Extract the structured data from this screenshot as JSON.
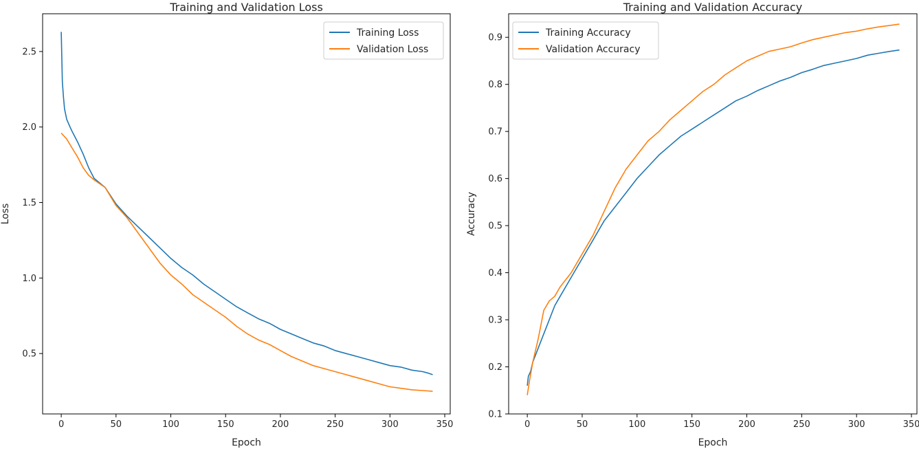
{
  "chart_data": [
    {
      "type": "line",
      "title": "Training and Validation Loss",
      "xlabel": "Epoch",
      "ylabel": "Loss",
      "xlim": [
        -17,
        355
      ],
      "ylim": [
        0.1,
        2.75
      ],
      "xticks": [
        0,
        50,
        100,
        150,
        200,
        250,
        300,
        350
      ],
      "yticks": [
        0.5,
        1.0,
        1.5,
        2.0,
        2.5
      ],
      "ytick_labels": [
        "0.5",
        "1.0",
        "1.5",
        "2.0",
        "2.5"
      ],
      "grid": false,
      "legend": "top-right",
      "series": [
        {
          "name": "Training Loss",
          "color": "#1f77b4",
          "x": [
            0,
            1,
            2,
            3,
            5,
            8,
            10,
            15,
            20,
            25,
            30,
            40,
            50,
            60,
            70,
            80,
            90,
            100,
            110,
            120,
            130,
            140,
            150,
            160,
            170,
            180,
            190,
            200,
            210,
            220,
            230,
            240,
            250,
            260,
            270,
            280,
            290,
            300,
            310,
            320,
            330,
            335,
            339
          ],
          "y": [
            2.63,
            2.3,
            2.2,
            2.12,
            2.05,
            2.0,
            1.97,
            1.9,
            1.82,
            1.73,
            1.66,
            1.6,
            1.49,
            1.41,
            1.34,
            1.27,
            1.2,
            1.13,
            1.07,
            1.02,
            0.96,
            0.91,
            0.86,
            0.81,
            0.77,
            0.73,
            0.7,
            0.66,
            0.63,
            0.6,
            0.57,
            0.55,
            0.52,
            0.5,
            0.48,
            0.46,
            0.44,
            0.42,
            0.41,
            0.39,
            0.38,
            0.37,
            0.36
          ]
        },
        {
          "name": "Validation Loss",
          "color": "#ff7f0e",
          "x": [
            0,
            5,
            10,
            15,
            20,
            25,
            30,
            40,
            50,
            60,
            70,
            80,
            90,
            100,
            110,
            120,
            130,
            140,
            150,
            160,
            170,
            180,
            190,
            200,
            210,
            220,
            230,
            240,
            250,
            260,
            270,
            280,
            290,
            300,
            310,
            320,
            330,
            339
          ],
          "y": [
            1.96,
            1.92,
            1.86,
            1.8,
            1.73,
            1.68,
            1.65,
            1.6,
            1.48,
            1.4,
            1.3,
            1.2,
            1.1,
            1.02,
            0.96,
            0.89,
            0.84,
            0.79,
            0.74,
            0.68,
            0.63,
            0.59,
            0.56,
            0.52,
            0.48,
            0.45,
            0.42,
            0.4,
            0.38,
            0.36,
            0.34,
            0.32,
            0.3,
            0.28,
            0.27,
            0.26,
            0.255,
            0.25
          ]
        }
      ]
    },
    {
      "type": "line",
      "title": "Training and Validation Accuracy",
      "xlabel": "Epoch",
      "ylabel": "Accuracy",
      "xlim": [
        -17,
        355
      ],
      "ylim": [
        0.1,
        0.95
      ],
      "xticks": [
        0,
        50,
        100,
        150,
        200,
        250,
        300,
        350
      ],
      "yticks": [
        0.1,
        0.2,
        0.3,
        0.4,
        0.5,
        0.6,
        0.7,
        0.8,
        0.9
      ],
      "ytick_labels": [
        "0.1",
        "0.2",
        "0.3",
        "0.4",
        "0.5",
        "0.6",
        "0.7",
        "0.8",
        "0.9"
      ],
      "grid": false,
      "legend": "top-left",
      "series": [
        {
          "name": "Training Accuracy",
          "color": "#1f77b4",
          "x": [
            0,
            1,
            3,
            5,
            10,
            15,
            20,
            25,
            30,
            40,
            50,
            60,
            70,
            80,
            90,
            100,
            110,
            120,
            130,
            140,
            150,
            160,
            170,
            180,
            190,
            200,
            210,
            220,
            230,
            240,
            250,
            260,
            270,
            280,
            290,
            300,
            310,
            320,
            330,
            339
          ],
          "y": [
            0.16,
            0.18,
            0.19,
            0.21,
            0.24,
            0.27,
            0.3,
            0.33,
            0.35,
            0.39,
            0.43,
            0.47,
            0.51,
            0.54,
            0.57,
            0.6,
            0.625,
            0.65,
            0.67,
            0.69,
            0.705,
            0.72,
            0.735,
            0.75,
            0.765,
            0.775,
            0.787,
            0.797,
            0.807,
            0.815,
            0.825,
            0.832,
            0.84,
            0.845,
            0.85,
            0.855,
            0.862,
            0.866,
            0.87,
            0.873
          ]
        },
        {
          "name": "Validation Accuracy",
          "color": "#ff7f0e",
          "x": [
            0,
            2,
            5,
            10,
            15,
            20,
            25,
            30,
            40,
            50,
            60,
            70,
            80,
            90,
            100,
            110,
            120,
            130,
            140,
            150,
            160,
            170,
            180,
            190,
            200,
            210,
            220,
            230,
            240,
            250,
            260,
            270,
            280,
            290,
            300,
            310,
            320,
            330,
            339
          ],
          "y": [
            0.14,
            0.17,
            0.21,
            0.26,
            0.32,
            0.34,
            0.35,
            0.37,
            0.4,
            0.44,
            0.48,
            0.53,
            0.58,
            0.62,
            0.65,
            0.68,
            0.7,
            0.725,
            0.745,
            0.765,
            0.785,
            0.8,
            0.82,
            0.835,
            0.85,
            0.86,
            0.87,
            0.875,
            0.88,
            0.888,
            0.895,
            0.9,
            0.905,
            0.91,
            0.913,
            0.918,
            0.922,
            0.925,
            0.928
          ]
        }
      ]
    }
  ]
}
